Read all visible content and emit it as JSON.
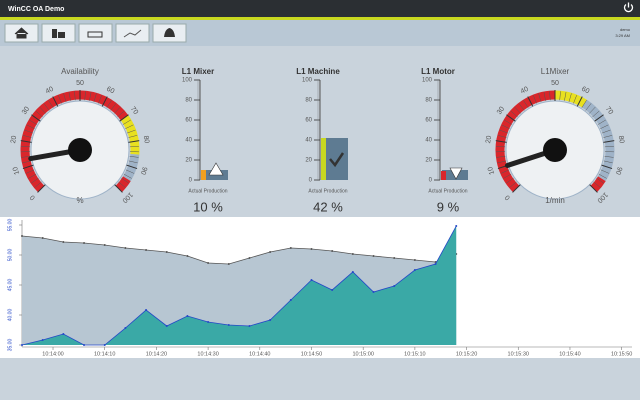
{
  "header": {
    "title": "WinCC OA Demo",
    "user": "demo",
    "time": "3:29 AM"
  },
  "gauges": [
    {
      "title": "Availability",
      "unit": "%",
      "value": 13,
      "range": [
        0,
        100
      ],
      "ticks": [
        0,
        10,
        20,
        30,
        40,
        50,
        60,
        70,
        80,
        90,
        100
      ],
      "bands": [
        {
          "from": 0,
          "to": 70,
          "color": "#d9262b"
        },
        {
          "from": 70,
          "to": 85,
          "color": "#e8e020"
        },
        {
          "from": 85,
          "to": 95,
          "color": "#9fb3c8"
        },
        {
          "from": 95,
          "to": 100,
          "color": "#d9262b"
        }
      ]
    },
    {
      "title": "L1Mixer",
      "unit": "1/min",
      "value": 10,
      "range": [
        0,
        100
      ],
      "ticks": [
        0,
        10,
        20,
        30,
        40,
        50,
        60,
        70,
        80,
        90,
        100
      ],
      "bands": [
        {
          "from": 0,
          "to": 50,
          "color": "#d9262b"
        },
        {
          "from": 50,
          "to": 62,
          "color": "#e8e020"
        },
        {
          "from": 62,
          "to": 95,
          "color": "#9fb3c8"
        },
        {
          "from": 95,
          "to": 100,
          "color": "#d9262b"
        }
      ]
    }
  ],
  "bar_gauges": [
    {
      "title": "L1 Mixer",
      "ticks": [
        100,
        80,
        60,
        40,
        20,
        0
      ],
      "caption": "Actual Production",
      "value": 10,
      "value_label": "10 %",
      "color": "#f0a020",
      "status": "warning"
    },
    {
      "title": "L1 Machine",
      "ticks": [
        100,
        80,
        60,
        40,
        20,
        0
      ],
      "caption": "Actual Production",
      "value": 42,
      "value_label": "42 %",
      "color": "#c8d820",
      "status": "ok"
    },
    {
      "title": "L1 Motor",
      "ticks": [
        100,
        80,
        60,
        40,
        20,
        0
      ],
      "caption": "Actual Production",
      "value": 9,
      "value_label": "9 %",
      "color": "#d9262b",
      "status": "alarm"
    }
  ],
  "trend": {
    "x": [
      "10:13:54",
      "10:13:58",
      "10:14:02",
      "10:14:06",
      "10:14:10",
      "10:14:14",
      "10:14:18",
      "10:14:22",
      "10:14:26",
      "10:14:30",
      "10:14:34",
      "10:14:38",
      "10:14:42",
      "10:14:46",
      "10:14:50",
      "10:14:54",
      "10:14:58",
      "10:15:02",
      "10:15:06",
      "10:15:10",
      "10:15:14",
      "10:15:18"
    ],
    "xlim": [
      "10:13:54",
      "10:15:52"
    ],
    "xticks": [
      "10:14:00",
      "10:14:10",
      "10:14:20",
      "10:14:30",
      "10:14:40",
      "10:14:50",
      "10:15:00",
      "10:15:10",
      "10:15:20",
      "10:15:30",
      "10:15:40",
      "10:15:50"
    ],
    "ylim": [
      35,
      55
    ],
    "yticks": [
      {
        "value": 35,
        "label": "35.00"
      },
      {
        "value": 40,
        "label": "40.00"
      },
      {
        "value": 45,
        "label": "45.00"
      },
      {
        "value": 50,
        "label": "50.00"
      },
      {
        "value": 55,
        "label": "55.00"
      }
    ],
    "series": [
      {
        "color": "#b7c6d2",
        "line": "#555555",
        "values": [
          53.17,
          52.83,
          52.17,
          52.0,
          51.67,
          51.17,
          50.83,
          50.5,
          49.83,
          48.67,
          48.5,
          49.5,
          50.5,
          51.17,
          51.0,
          50.67,
          50.17,
          49.83,
          49.5,
          49.17,
          48.83,
          50.17
        ]
      },
      {
        "color": "#3aa9a6",
        "line": "#2447c8",
        "values": [
          35,
          35.83,
          36.83,
          35,
          35,
          37.83,
          40.83,
          38.17,
          39.83,
          38.83,
          38.33,
          38.17,
          39.17,
          42.5,
          45.83,
          44.17,
          47.17,
          43.83,
          44.83,
          47.5,
          48.5,
          54.83
        ]
      }
    ]
  }
}
